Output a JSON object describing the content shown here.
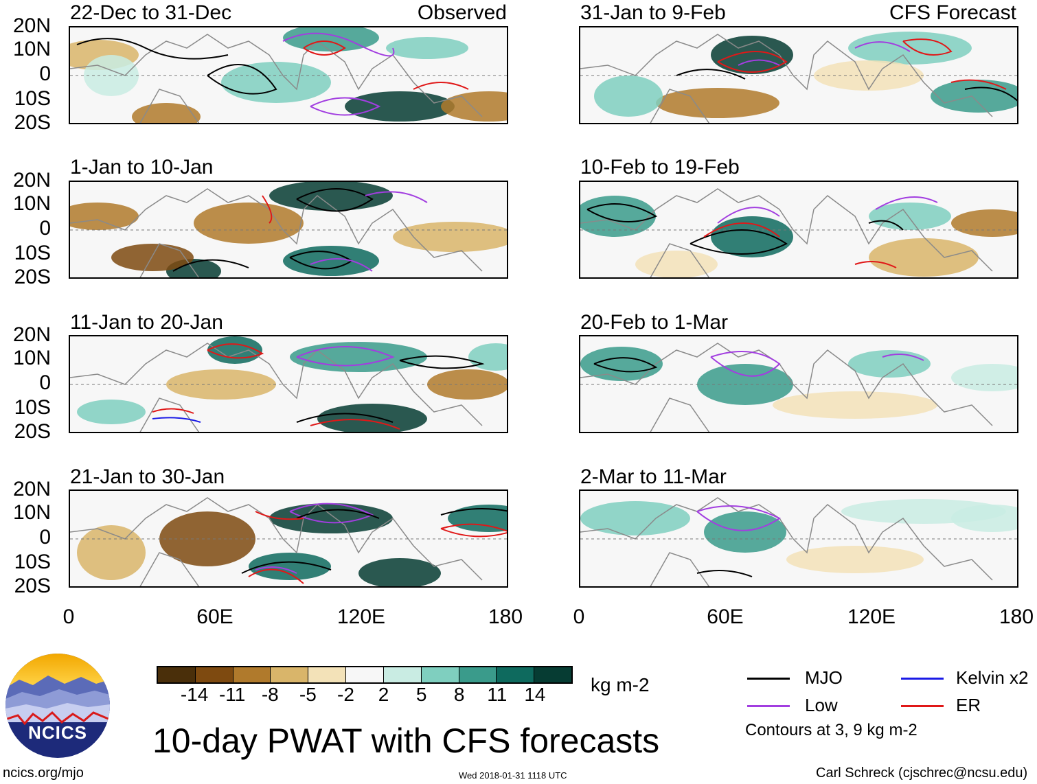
{
  "chart_data": {
    "type": "heatmap",
    "title": "10-day PWAT with CFS forecasts",
    "units": "kg m-2",
    "x_tick_labels": [
      "0",
      "60E",
      "120E",
      "180"
    ],
    "y_tick_labels": [
      "20N",
      "10N",
      "0",
      "10S",
      "20S"
    ],
    "xlim": [
      0,
      180
    ],
    "ylim": [
      -20,
      20
    ],
    "colorbar": {
      "levels": [
        "-14",
        "-11",
        "-8",
        "-5",
        "-2",
        "2",
        "5",
        "8",
        "11",
        "14"
      ],
      "colors": [
        "#4a2f0a",
        "#7e4a10",
        "#b07a2c",
        "#d9b56a",
        "#f3e2b8",
        "#f7f7f7",
        "#c9ece3",
        "#7fcfbf",
        "#3a9b8b",
        "#0e6a5e",
        "#063c33"
      ]
    },
    "legend": {
      "items": [
        {
          "label": "MJO",
          "color": "#000000"
        },
        {
          "label": "Low",
          "color": "#a23ee0"
        },
        {
          "label": "Kelvin x2",
          "color": "#1a1ae6"
        },
        {
          "label": "ER",
          "color": "#e01818"
        }
      ],
      "note": "Contours at 3, 9 kg m-2"
    },
    "panels": [
      {
        "period": "22-Dec to 31-Dec",
        "label": "Observed",
        "column": "left",
        "row": 0
      },
      {
        "period": "1-Jan to 10-Jan",
        "label": "",
        "column": "left",
        "row": 1
      },
      {
        "period": "11-Jan to 20-Jan",
        "label": "",
        "column": "left",
        "row": 2
      },
      {
        "period": "21-Jan to 30-Jan",
        "label": "",
        "column": "left",
        "row": 3
      },
      {
        "period": "31-Jan to 9-Feb",
        "label": "CFS Forecast",
        "column": "right",
        "row": 0
      },
      {
        "period": "10-Feb to 19-Feb",
        "label": "",
        "column": "right",
        "row": 1
      },
      {
        "period": "20-Feb to 1-Mar",
        "label": "",
        "column": "right",
        "row": 2
      },
      {
        "period": "2-Mar to 11-Mar",
        "label": "",
        "column": "right",
        "row": 3
      }
    ]
  },
  "footer": {
    "site": "ncics.org/mjo",
    "timestamp": "Wed 2018-01-31 1118 UTC",
    "author": "Carl Schreck (cjschrec@ncsu.edu)",
    "logo_text": "NCICS"
  }
}
